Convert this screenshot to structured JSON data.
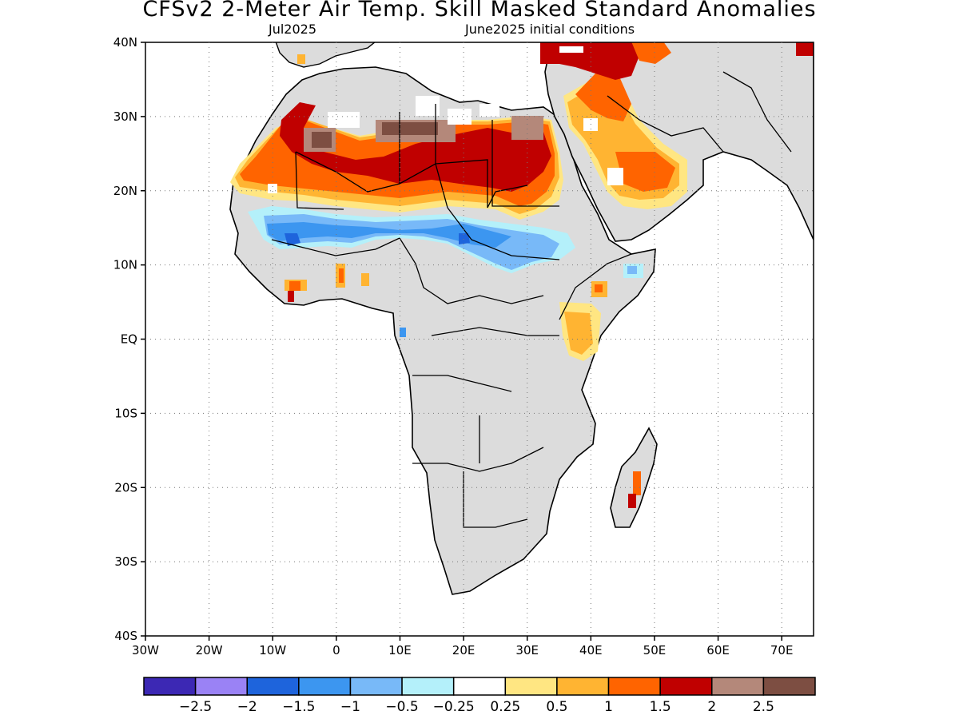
{
  "title": "CFSv2 2-Meter Air Temp. Skill Masked Standard Anomalies",
  "subtitle_left": "Jul2025",
  "subtitle_right": "June2025 initial conditions",
  "lat_ticks": [
    "40N",
    "30N",
    "20N",
    "10N",
    "EQ",
    "10S",
    "20S",
    "30S",
    "40S"
  ],
  "lon_ticks": [
    "30W",
    "20W",
    "10W",
    "0",
    "10E",
    "20E",
    "30E",
    "40E",
    "50E",
    "60E",
    "70E"
  ],
  "map_extent": {
    "lon": [
      -30,
      75
    ],
    "lat": [
      -40,
      40
    ]
  },
  "colorbar": {
    "colors": [
      "#3c28b4",
      "#9a82f5",
      "#1e64dc",
      "#3c96f0",
      "#78b9f8",
      "#b4f0fa",
      "#ffffff",
      "#ffe682",
      "#ffb432",
      "#ff6400",
      "#c00000",
      "#b4887a",
      "#7d4e42"
    ],
    "labels": [
      "-2.5",
      "-2",
      "-1.5",
      "-1",
      "-0.5",
      "-0.25",
      "0.25",
      "0.5",
      "1",
      "1.5",
      "2",
      "2.5"
    ]
  },
  "legend": {
    "land_mask_color": "#dcdcdc"
  }
}
